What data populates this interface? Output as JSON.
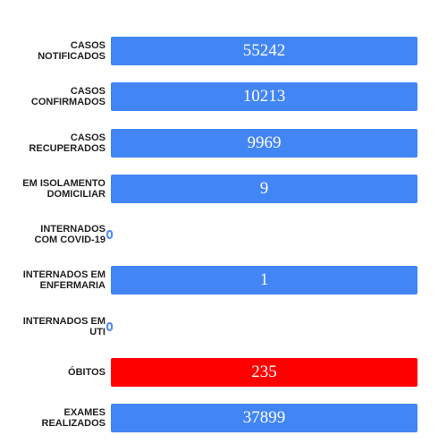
{
  "rows": [
    {
      "label_lines": [
        "CASOS",
        "NOTIFICADOS"
      ],
      "value": 55242,
      "color": "#4285f4"
    },
    {
      "label_lines": [
        "CASOS",
        "CONFIRMADOS"
      ],
      "value": 10213,
      "color": "#4285f4"
    },
    {
      "label_lines": [
        "CASOS",
        "RECUPERADOS"
      ],
      "value": 9969,
      "color": "#4285f4"
    },
    {
      "label_lines": [
        "EM ISOLAMENTO",
        "DOMICILIAR"
      ],
      "value": 9,
      "color": "#4285f4"
    },
    {
      "label_lines": [
        "INTERNADOS",
        "COM COVID-19"
      ],
      "value": 0,
      "color": "#4285f4"
    },
    {
      "label_lines": [
        "INTERNADOS EM",
        "ENFERMARIA"
      ],
      "value": 1,
      "color": "#4285f4"
    },
    {
      "label_lines": [
        "INTERNADOS EM",
        "UTI"
      ],
      "value": 0,
      "color": "#4285f4"
    },
    {
      "label_lines": [
        "ÓBITOS"
      ],
      "value": 235,
      "color": "#ff0000"
    },
    {
      "label_lines": [
        "EXAMES",
        "REALIZADOS"
      ],
      "value": 37899,
      "color": "#4285f4"
    }
  ]
}
